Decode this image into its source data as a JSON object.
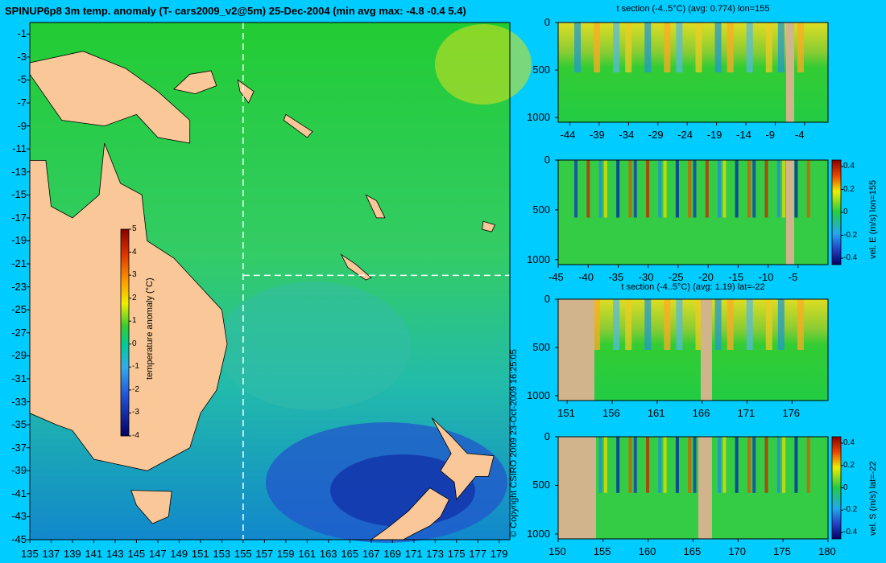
{
  "header": {
    "title": "SPINUP6p8 3m temp. anomaly (T- cars2009_v2@5m) 25-Dec-2004 (min avg max: -4.8 -0.4 5.4)"
  },
  "copyright": "© Copyright CSIRO 2009   23-Oct-2009 16:25:05",
  "chart_data": [
    {
      "type": "heatmap",
      "title": "SPINUP6p8 3m temp. anomaly (T- cars2009_v2@5m) 25-Dec-2004 (min avg max: -4.8 -0.4 5.4)",
      "x_ticks": [
        "135",
        "137",
        "139",
        "141",
        "143",
        "145",
        "147",
        "149",
        "151",
        "153",
        "155",
        "157",
        "159",
        "161",
        "163",
        "165",
        "167",
        "169",
        "171",
        "173",
        "175",
        "177",
        "179"
      ],
      "y_ticks": [
        "-1",
        "-3",
        "-5",
        "-7",
        "-9",
        "-11",
        "-13",
        "-15",
        "-17",
        "-19",
        "-21",
        "-23",
        "-25",
        "-27",
        "-29",
        "-31",
        "-33",
        "-35",
        "-37",
        "-39",
        "-41",
        "-43",
        "-45"
      ],
      "xlim": [
        135,
        180
      ],
      "ylim": [
        -45,
        0
      ],
      "section_lines": {
        "lon": 155,
        "lat": -22
      },
      "colorbar": {
        "label": "temperature anomaly (°C)",
        "ticks": [
          "5",
          "4",
          "3",
          "2",
          "1",
          "0",
          "-1",
          "-2",
          "-3",
          "-4"
        ],
        "range": [
          -4,
          5
        ]
      }
    },
    {
      "type": "heatmap",
      "title": "t section (-4..5°C) (avg: 0.774) lon=155",
      "x_ticks": [
        "-44",
        "-39",
        "-34",
        "-29",
        "-24",
        "-19",
        "-14",
        "-9",
        "-4"
      ],
      "y_ticks": [
        "0",
        "500",
        "1000"
      ]
    },
    {
      "type": "heatmap",
      "title": "",
      "x_ticks": [
        "-45",
        "-40",
        "-35",
        "-30",
        "-25",
        "-20",
        "-15",
        "-10",
        "-5"
      ],
      "y_ticks": [
        "0",
        "500",
        "1000"
      ],
      "colorbar": {
        "label": "vel. E (m/s) lon=155",
        "ticks": [
          "0.4",
          "0.2",
          "0",
          "-0.2",
          "-0.4"
        ]
      }
    },
    {
      "type": "heatmap",
      "title": "t section (-4..5°C) (avg: 1.19) lat=-22",
      "x_ticks": [
        "151",
        "156",
        "161",
        "166",
        "171",
        "176"
      ],
      "y_ticks": [
        "0",
        "500",
        "1000"
      ]
    },
    {
      "type": "heatmap",
      "title": "",
      "x_ticks": [
        "150",
        "155",
        "160",
        "165",
        "170",
        "175",
        "180"
      ],
      "y_ticks": [
        "0",
        "500",
        "1000"
      ],
      "colorbar": {
        "label": "vel. S (m/s) lat=-22",
        "ticks": [
          "0.4",
          "0.2",
          "0",
          "-0.2",
          "-0.4"
        ]
      }
    }
  ]
}
